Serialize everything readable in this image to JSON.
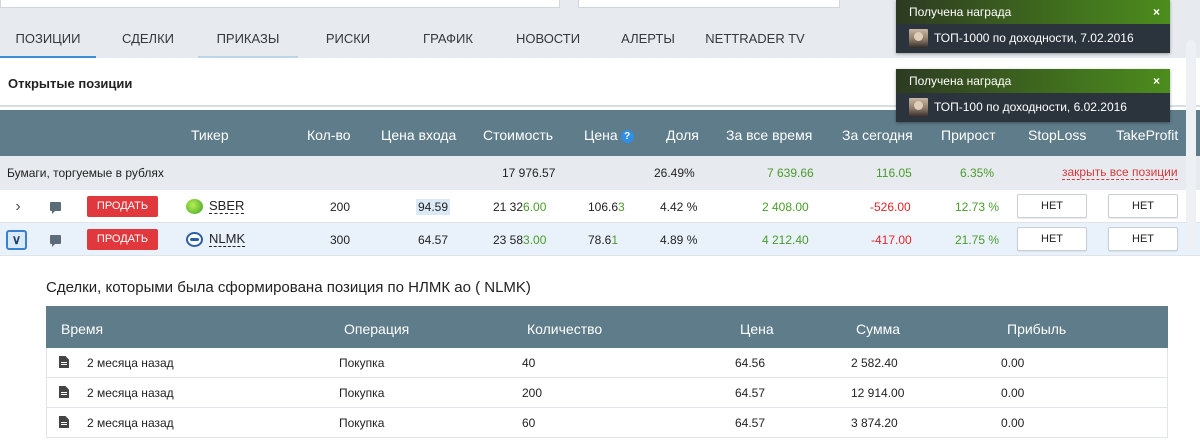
{
  "tabs": [
    {
      "label": "ПОЗИЦИИ"
    },
    {
      "label": "СДЕЛКИ"
    },
    {
      "label": "ПРИКАЗЫ"
    },
    {
      "label": "РИСКИ"
    },
    {
      "label": "ГРАФИК"
    },
    {
      "label": "НОВОСТИ"
    },
    {
      "label": "АЛЕРТЫ"
    },
    {
      "label": "NETTRADER TV"
    }
  ],
  "section_title": "Открытые позиции",
  "columns": {
    "ticker": "Тикер",
    "qty": "Кол-во",
    "entry_price": "Цена входа",
    "value": "Стоимость",
    "price": "Цена",
    "share": "Доля",
    "all_time": "За все время",
    "today": "За сегодня",
    "growth": "Прирост",
    "stoploss": "StopLoss",
    "takeprofit": "TakeProfit"
  },
  "group": {
    "name": "Бумаги, торгуемые в рублях",
    "value": "17 976.57",
    "share": "26.49%",
    "all_time": "7 639.66",
    "today": "116.05",
    "growth": "6.35%",
    "close_all": "закрыть все позиции"
  },
  "positions": [
    {
      "sell": "ПРОДАТЬ",
      "ticker": "SBER",
      "qty": "200",
      "entry_price": "94.59",
      "value_a": "21 32",
      "value_b": "6.00",
      "price_a": "106.6",
      "price_b": "3",
      "share": "4.42 %",
      "all_time": "2 408.00",
      "today": "-526.00",
      "growth": "12.73 %",
      "stoploss": "НЕТ",
      "takeprofit": "НЕТ"
    },
    {
      "sell": "ПРОДАТЬ",
      "ticker": "NLMK",
      "qty": "300",
      "entry_price": "64.57",
      "value_a": "23 58",
      "value_b": "3.00",
      "price_a": "78.6",
      "price_b": "1",
      "share": "4.89 %",
      "all_time": "4 212.40",
      "today": "-417.00",
      "growth": "21.75 %",
      "stoploss": "НЕТ",
      "takeprofit": "НЕТ"
    }
  ],
  "deals": {
    "title": "Сделки, которыми была сформирована позиция по НЛМК ао ( NLMK)",
    "columns": {
      "time": "Время",
      "operation": "Операция",
      "qty": "Количество",
      "price": "Цена",
      "sum": "Сумма",
      "profit": "Прибыль"
    },
    "rows": [
      {
        "time": "2 месяца назад",
        "operation": "Покупка",
        "qty": "40",
        "price": "64.56",
        "sum": "2 582.40",
        "profit": "0.00"
      },
      {
        "time": "2 месяца назад",
        "operation": "Покупка",
        "qty": "200",
        "price": "64.57",
        "sum": "12 914.00",
        "profit": "0.00"
      },
      {
        "time": "2 месяца назад",
        "operation": "Покупка",
        "qty": "60",
        "price": "64.57",
        "sum": "3 874.20",
        "profit": "0.00"
      }
    ]
  },
  "notifications": [
    {
      "title": "Получена награда",
      "close": "×",
      "text": "ТОП-1000 по доходности, 7.02.2016"
    },
    {
      "title": "Получена награда",
      "close": "×",
      "text": "ТОП-100 по доходности, 6.02.2016"
    }
  ],
  "colors": {
    "header_bg": "#5f7c8a",
    "sell_red": "#e0383c",
    "profit_green": "#4a9b2b",
    "loss_red": "#e0262b",
    "accent_blue": "#3b8fd6"
  }
}
